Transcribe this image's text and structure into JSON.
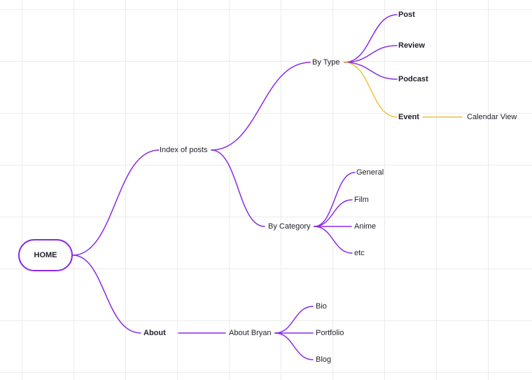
{
  "mindmap": {
    "root": "HOME",
    "index_of_posts": "Index of posts",
    "by_type": "By Type",
    "post": "Post",
    "review": "Review",
    "podcast": "Podcast",
    "event": "Event",
    "calendar_view": "Calendar View",
    "by_category": "By Category",
    "general": "General",
    "film": "Film",
    "anime": "Anime",
    "etc": "etc",
    "about": "About",
    "about_bryan": "About Bryan",
    "bio": "Bio",
    "portfolio": "Portfolio",
    "blog": "Blog"
  },
  "colors": {
    "branch": "#8a2be2",
    "highlight_branch": "#f0c23c",
    "grid": "#ececec",
    "text": "#1f1f2b"
  }
}
